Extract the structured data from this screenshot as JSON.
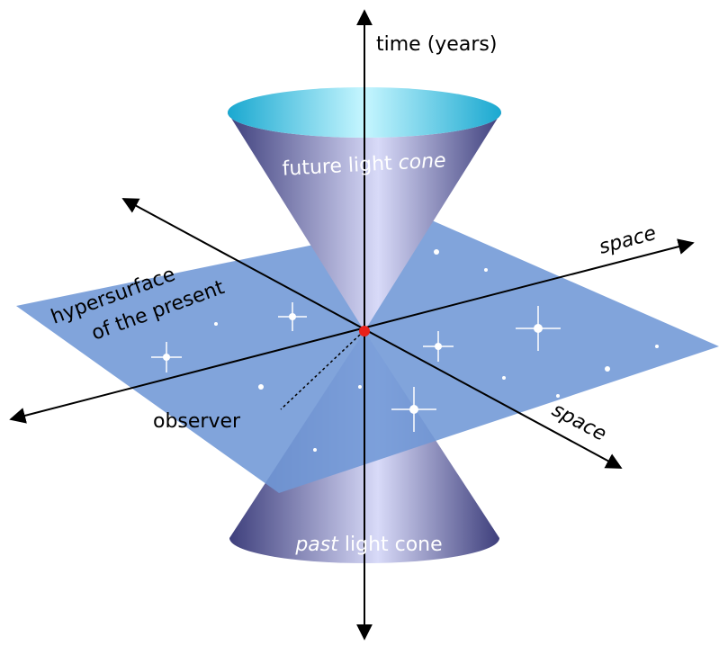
{
  "time_axis": "time (years)",
  "future_cone": {
    "plain": "future light",
    "italic": "cone"
  },
  "past_cone": {
    "italic": "past",
    "plain": "light cone"
  },
  "space_axes": [
    "space",
    "space"
  ],
  "hypersurface": [
    "hypersurface",
    "of the present"
  ],
  "observer": "observer"
}
